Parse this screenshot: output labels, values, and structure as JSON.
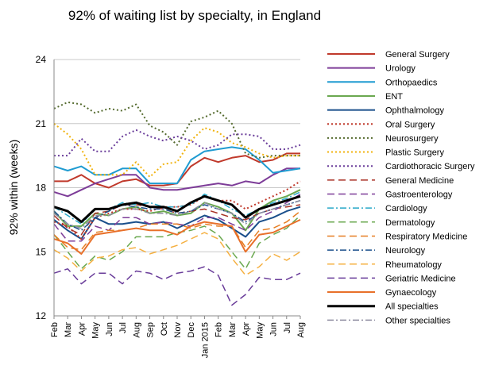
{
  "chart_data": {
    "type": "line",
    "title": "92% of waiting list by specialty, in England",
    "xlabel": "",
    "ylabel": "92% within (weeks)",
    "ylim": [
      12,
      24
    ],
    "yticks": [
      12,
      15,
      18,
      21,
      24
    ],
    "grid": "horizontal",
    "legend": "right",
    "x": [
      "Feb",
      "Mar",
      "Apr",
      "May",
      "Jun",
      "Jul",
      "Aug",
      "Sep",
      "Oct",
      "Nov",
      "Dec",
      "Jan 2015",
      "Feb",
      "Mar",
      "Apr",
      "May",
      "Jun",
      "Jul",
      "Aug"
    ],
    "series": [
      {
        "name": "General Surgery",
        "color": "#c0392b",
        "dash": "solid",
        "width": 2,
        "values": [
          18.3,
          18.3,
          18.6,
          18.2,
          18.0,
          18.3,
          18.4,
          18.1,
          18.1,
          18.2,
          19.0,
          19.4,
          19.2,
          19.4,
          19.5,
          19.2,
          19.3,
          19.6,
          19.6
        ]
      },
      {
        "name": "Urology",
        "color": "#7d3c98",
        "dash": "solid",
        "width": 2,
        "values": [
          17.8,
          17.6,
          17.9,
          18.2,
          18.4,
          18.6,
          18.6,
          18.0,
          17.9,
          17.9,
          18.0,
          18.1,
          18.2,
          18.1,
          18.3,
          18.2,
          18.6,
          18.9,
          18.9
        ]
      },
      {
        "name": "Orthopaedics",
        "color": "#1f9bd1",
        "dash": "solid",
        "width": 2,
        "values": [
          19.0,
          18.8,
          19.0,
          18.6,
          18.6,
          18.9,
          18.9,
          18.2,
          18.2,
          18.2,
          19.3,
          19.7,
          19.8,
          19.9,
          19.8,
          19.3,
          18.7,
          18.8,
          18.9
        ]
      },
      {
        "name": "ENT",
        "color": "#6aa84f",
        "dash": "solid",
        "width": 2,
        "values": [
          16.9,
          16.2,
          16.2,
          16.8,
          16.7,
          17.0,
          17.1,
          16.8,
          16.9,
          16.7,
          16.8,
          17.3,
          17.1,
          16.8,
          16.0,
          17.0,
          17.4,
          17.6,
          17.9
        ]
      },
      {
        "name": "Ophthalmology",
        "color": "#1a4f8b",
        "dash": "solid",
        "width": 2,
        "values": [
          16.5,
          16.0,
          15.6,
          16.6,
          16.3,
          16.3,
          16.4,
          16.3,
          16.4,
          16.1,
          16.4,
          16.7,
          16.5,
          16.1,
          15.7,
          16.4,
          16.6,
          16.9,
          17.1
        ]
      },
      {
        "name": "Oral Surgery",
        "color": "#c0392b",
        "dash": "dot",
        "width": 2,
        "values": [
          16.4,
          16.2,
          15.6,
          16.6,
          16.8,
          17.0,
          17.0,
          16.9,
          17.1,
          17.1,
          17.2,
          17.6,
          17.4,
          17.4,
          17.0,
          17.3,
          17.6,
          17.9,
          18.3
        ]
      },
      {
        "name": "Neurosurgery",
        "color": "#556b2f",
        "dash": "dot",
        "width": 2,
        "values": [
          21.7,
          22.0,
          21.9,
          21.5,
          21.7,
          21.6,
          21.9,
          20.9,
          20.6,
          20.0,
          21.1,
          21.3,
          21.6,
          21.0,
          19.6,
          19.4,
          19.5,
          19.5,
          19.5
        ]
      },
      {
        "name": "Plastic Surgery",
        "color": "#f1b30f",
        "dash": "dot",
        "width": 2,
        "values": [
          21.0,
          20.5,
          19.8,
          18.6,
          18.6,
          18.6,
          19.2,
          18.5,
          19.1,
          19.2,
          20.2,
          20.8,
          20.6,
          20.1,
          19.9,
          19.6,
          19.4,
          19.5,
          19.5
        ]
      },
      {
        "name": "Cardiothoracic Surgery",
        "color": "#6a3d9a",
        "dash": "dot",
        "width": 2,
        "values": [
          19.5,
          19.5,
          20.3,
          19.7,
          19.7,
          20.4,
          20.7,
          20.4,
          20.2,
          20.4,
          20.2,
          19.8,
          20.0,
          20.5,
          20.5,
          20.4,
          19.8,
          19.8,
          20.0
        ]
      },
      {
        "name": "General Medicine",
        "color": "#a93226",
        "dash": "longdash",
        "width": 1.5,
        "values": [
          16.7,
          16.1,
          15.8,
          16.8,
          16.9,
          17.2,
          17.2,
          17.1,
          17.0,
          16.8,
          16.9,
          17.0,
          16.8,
          16.6,
          16.5,
          16.8,
          17.0,
          17.1,
          17.2
        ]
      },
      {
        "name": "Gastroenterology",
        "color": "#7d3c98",
        "dash": "longdash",
        "width": 1.5,
        "values": [
          16.3,
          15.5,
          15.5,
          16.2,
          16.0,
          16.6,
          16.6,
          16.3,
          16.4,
          16.3,
          16.2,
          16.6,
          16.6,
          16.3,
          16.0,
          16.6,
          16.9,
          17.3,
          17.7
        ]
      },
      {
        "name": "Cardiology",
        "color": "#28a7c7",
        "dash": "dashdot",
        "width": 1.5,
        "values": [
          17.1,
          16.7,
          16.3,
          17.0,
          17.0,
          17.3,
          17.2,
          17.3,
          17.1,
          17.1,
          17.2,
          17.7,
          17.4,
          17.0,
          16.7,
          17.0,
          17.3,
          17.5,
          17.8
        ]
      },
      {
        "name": "Dermatology",
        "color": "#6aa84f",
        "dash": "longdash",
        "width": 1.5,
        "values": [
          15.8,
          15.0,
          14.2,
          14.8,
          14.6,
          15.0,
          15.7,
          15.7,
          15.7,
          15.9,
          16.0,
          16.2,
          15.8,
          15.0,
          14.2,
          15.4,
          15.8,
          16.1,
          16.7
        ]
      },
      {
        "name": "Respiratory Medicine",
        "color": "#e67e22",
        "dash": "longdash",
        "width": 1.5,
        "values": [
          15.8,
          15.2,
          15.1,
          15.9,
          16.0,
          16.0,
          16.1,
          16.3,
          16.3,
          16.3,
          16.1,
          16.3,
          16.2,
          16.2,
          15.2,
          16.0,
          16.1,
          16.4,
          16.9
        ]
      },
      {
        "name": "Neurology",
        "color": "#1a4f8b",
        "dash": "dashdot",
        "width": 1.5,
        "values": [
          16.9,
          16.3,
          16.0,
          16.6,
          16.9,
          17.2,
          17.1,
          17.0,
          17.0,
          16.8,
          16.9,
          17.2,
          17.0,
          16.8,
          16.4,
          16.8,
          17.0,
          17.2,
          17.4
        ]
      },
      {
        "name": "Rheumatology",
        "color": "#f5b041",
        "dash": "longdash",
        "width": 1.5,
        "values": [
          15.1,
          14.7,
          14.1,
          14.7,
          14.8,
          15.1,
          15.2,
          14.9,
          15.1,
          15.3,
          15.6,
          15.9,
          15.6,
          14.7,
          13.9,
          14.3,
          14.9,
          14.6,
          15.0
        ]
      },
      {
        "name": "Geriatric Medicine",
        "color": "#6a3d9a",
        "dash": "longdash",
        "width": 1.5,
        "values": [
          14.0,
          14.2,
          13.5,
          14.0,
          14.0,
          13.5,
          14.1,
          14.0,
          13.7,
          14.0,
          14.1,
          14.3,
          13.9,
          12.5,
          13.0,
          13.8,
          13.7,
          13.7,
          14.0
        ]
      },
      {
        "name": "Gynaecology",
        "color": "#e8702a",
        "dash": "solid",
        "width": 2,
        "values": [
          15.6,
          15.4,
          14.9,
          15.8,
          15.9,
          16.0,
          16.1,
          16.0,
          16.0,
          15.8,
          16.2,
          16.4,
          16.3,
          16.2,
          15.0,
          15.8,
          15.9,
          16.2,
          16.5
        ]
      },
      {
        "name": "All specialties",
        "color": "#000000",
        "dash": "solid",
        "width": 3,
        "values": [
          17.1,
          16.9,
          16.4,
          17.0,
          17.0,
          17.2,
          17.3,
          17.1,
          17.1,
          16.9,
          17.3,
          17.6,
          17.4,
          17.2,
          16.6,
          17.0,
          17.2,
          17.4,
          17.6
        ]
      },
      {
        "name": "Other specialties",
        "color": "#8e8ca0",
        "dash": "dashdot",
        "width": 1.5,
        "values": [
          16.8,
          16.3,
          16.1,
          16.7,
          16.7,
          17.0,
          17.0,
          16.8,
          16.8,
          16.7,
          16.9,
          17.3,
          17.0,
          16.8,
          16.3,
          16.8,
          17.0,
          17.2,
          17.4
        ]
      }
    ]
  }
}
